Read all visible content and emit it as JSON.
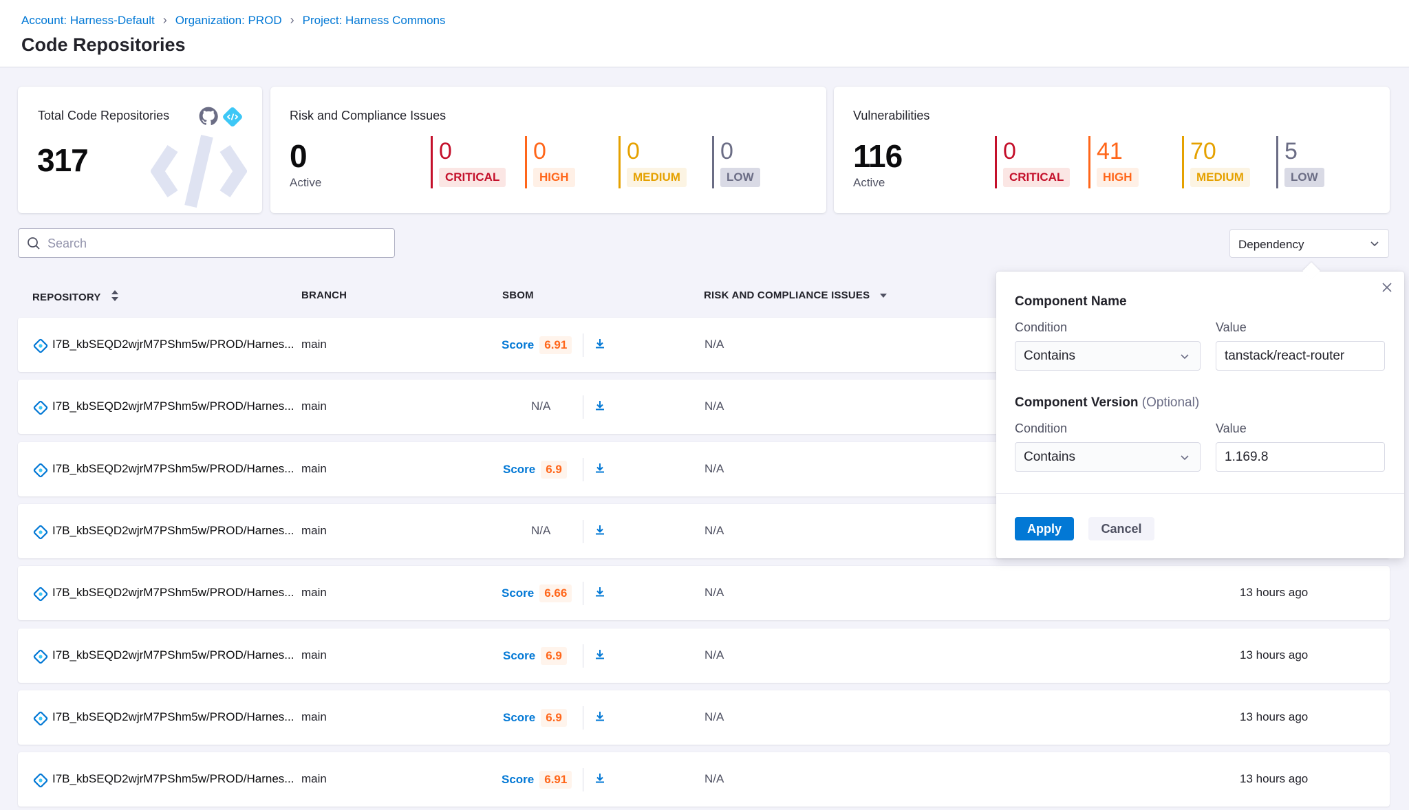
{
  "breadcrumb": [
    {
      "label": "Account: Harness-Default"
    },
    {
      "label": "Organization: PROD"
    },
    {
      "label": "Project: Harness Commons"
    }
  ],
  "page_title": "Code Repositories",
  "cards": {
    "total": {
      "title": "Total Code Repositories",
      "value": "317"
    },
    "risk": {
      "title": "Risk and Compliance Issues",
      "active_value": "0",
      "active_label": "Active",
      "severities": [
        {
          "count": "0",
          "label": "CRITICAL"
        },
        {
          "count": "0",
          "label": "HIGH"
        },
        {
          "count": "0",
          "label": "MEDIUM"
        },
        {
          "count": "0",
          "label": "LOW"
        }
      ]
    },
    "vuln": {
      "title": "Vulnerabilities",
      "active_value": "116",
      "active_label": "Active",
      "severities": [
        {
          "count": "0",
          "label": "CRITICAL"
        },
        {
          "count": "41",
          "label": "HIGH"
        },
        {
          "count": "70",
          "label": "MEDIUM"
        },
        {
          "count": "5",
          "label": "LOW"
        }
      ]
    }
  },
  "search": {
    "placeholder": "Search"
  },
  "filter_select": {
    "value": "Dependency"
  },
  "table": {
    "headers": {
      "repository": "REPOSITORY",
      "branch": "BRANCH",
      "sbom": "SBOM",
      "risk": "RISK AND COMPLIANCE ISSUES"
    },
    "rows": [
      {
        "repo": "I7B_kbSEQD2wjrM7PShm5w/PROD/Harnes...",
        "branch": "main",
        "score_label": "Score",
        "score": "6.91",
        "sbom_na": "",
        "risk": "N/A",
        "time": ""
      },
      {
        "repo": "I7B_kbSEQD2wjrM7PShm5w/PROD/Harnes...",
        "branch": "main",
        "score_label": "",
        "score": "",
        "sbom_na": "N/A",
        "risk": "N/A",
        "time": ""
      },
      {
        "repo": "I7B_kbSEQD2wjrM7PShm5w/PROD/Harnes...",
        "branch": "main",
        "score_label": "Score",
        "score": "6.9",
        "sbom_na": "",
        "risk": "N/A",
        "time": ""
      },
      {
        "repo": "I7B_kbSEQD2wjrM7PShm5w/PROD/Harnes...",
        "branch": "main",
        "score_label": "",
        "score": "",
        "sbom_na": "N/A",
        "risk": "N/A",
        "time": ""
      },
      {
        "repo": "I7B_kbSEQD2wjrM7PShm5w/PROD/Harnes...",
        "branch": "main",
        "score_label": "Score",
        "score": "6.66",
        "sbom_na": "",
        "risk": "N/A",
        "time": "13 hours ago"
      },
      {
        "repo": "I7B_kbSEQD2wjrM7PShm5w/PROD/Harnes...",
        "branch": "main",
        "score_label": "Score",
        "score": "6.9",
        "sbom_na": "",
        "risk": "N/A",
        "time": "13 hours ago"
      },
      {
        "repo": "I7B_kbSEQD2wjrM7PShm5w/PROD/Harnes...",
        "branch": "main",
        "score_label": "Score",
        "score": "6.9",
        "sbom_na": "",
        "risk": "N/A",
        "time": "13 hours ago"
      },
      {
        "repo": "I7B_kbSEQD2wjrM7PShm5w/PROD/Harnes...",
        "branch": "main",
        "score_label": "Score",
        "score": "6.91",
        "sbom_na": "",
        "risk": "N/A",
        "time": "13 hours ago"
      }
    ]
  },
  "popover": {
    "component_name": {
      "title": "Component Name",
      "condition_label": "Condition",
      "condition": "Contains",
      "value_label": "Value",
      "value": "tanstack/react-router"
    },
    "component_version": {
      "title": "Component Version",
      "optional": "(Optional)",
      "condition_label": "Condition",
      "condition": "Contains",
      "value_label": "Value",
      "value": "1.169.8"
    },
    "apply": "Apply",
    "cancel": "Cancel"
  },
  "colors": {
    "critical": "#c4102b",
    "high": "#ff661a",
    "medium": "#e5a100",
    "low": "#6b6d85",
    "accent": "#0278d5"
  }
}
